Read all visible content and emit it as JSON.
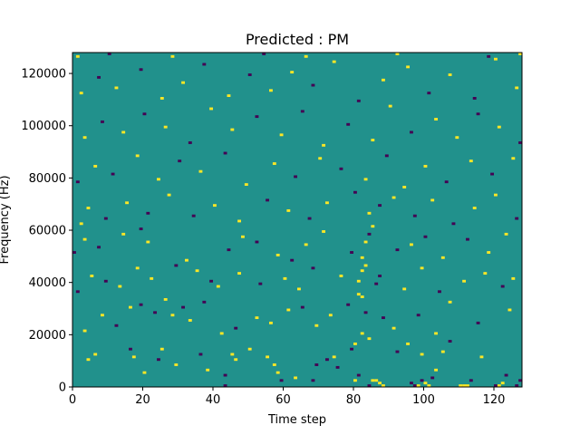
{
  "chart_data": {
    "type": "heatmap",
    "title": "Predicted : PM",
    "xlabel": "Time step",
    "ylabel": "Frequency (Hz)",
    "xlim": [
      0,
      128
    ],
    "ylim": [
      0,
      128000
    ],
    "x_ticks": [
      "0",
      "20",
      "40",
      "60",
      "80",
      "100",
      "120"
    ],
    "y_ticks": [
      "0",
      "20000",
      "40000",
      "60000",
      "80000",
      "100000",
      "120000"
    ],
    "grid": false,
    "legend": "none",
    "value_levels": [
      -1,
      0,
      1
    ],
    "colors": {
      "low": "#440154",
      "mid": "#21918c",
      "high": "#fde725"
    },
    "background_value": 0,
    "cell_height_hz": 1000,
    "cells": [
      [
        43,
        0,
        -1
      ],
      [
        43,
        4,
        -1
      ],
      [
        45,
        12,
        1
      ],
      [
        50,
        14,
        1
      ],
      [
        57,
        8,
        1
      ],
      [
        58,
        5,
        1
      ],
      [
        59,
        2,
        -1
      ],
      [
        63,
        3,
        1
      ],
      [
        68,
        2,
        -1
      ],
      [
        69,
        8,
        -1
      ],
      [
        75,
        7,
        -1
      ],
      [
        80,
        2,
        1
      ],
      [
        81,
        4,
        -1
      ],
      [
        84,
        0,
        -1
      ],
      [
        85,
        2,
        1
      ],
      [
        86,
        2,
        1
      ],
      [
        87,
        1,
        1
      ],
      [
        88,
        0,
        1
      ],
      [
        96,
        1,
        -1
      ],
      [
        97,
        0,
        -1
      ],
      [
        98,
        0,
        1
      ],
      [
        99,
        2,
        -1
      ],
      [
        100,
        1,
        1
      ],
      [
        101,
        0,
        1
      ],
      [
        102,
        3,
        -1
      ],
      [
        103,
        6,
        1
      ],
      [
        110,
        0,
        1
      ],
      [
        111,
        0,
        1
      ],
      [
        112,
        0,
        1
      ],
      [
        113,
        2,
        -1
      ],
      [
        120,
        0,
        -1
      ],
      [
        121,
        0,
        1
      ],
      [
        122,
        1,
        1
      ],
      [
        123,
        4,
        -1
      ],
      [
        126,
        0,
        -1
      ],
      [
        127,
        2,
        -1
      ],
      [
        4,
        10,
        1
      ],
      [
        6,
        12,
        1
      ],
      [
        16,
        14,
        -1
      ],
      [
        17,
        11,
        1
      ],
      [
        20,
        5,
        1
      ],
      [
        24,
        10,
        -1
      ],
      [
        25,
        14,
        1
      ],
      [
        29,
        8,
        1
      ],
      [
        36,
        12,
        -1
      ],
      [
        38,
        6,
        1
      ],
      [
        46,
        10,
        1
      ],
      [
        55,
        11,
        1
      ],
      [
        72,
        10,
        -1
      ],
      [
        74,
        11,
        1
      ],
      [
        79,
        14,
        -1
      ],
      [
        80,
        16,
        1
      ],
      [
        82,
        20,
        1
      ],
      [
        84,
        18,
        1
      ],
      [
        92,
        13,
        -1
      ],
      [
        95,
        16,
        1
      ],
      [
        99,
        12,
        1
      ],
      [
        105,
        13,
        1
      ],
      [
        107,
        17,
        -1
      ],
      [
        116,
        11,
        1
      ],
      [
        3,
        21,
        1
      ],
      [
        8,
        27,
        1
      ],
      [
        12,
        23,
        -1
      ],
      [
        16,
        30,
        1
      ],
      [
        19,
        31,
        -1
      ],
      [
        23,
        28,
        -1
      ],
      [
        26,
        33,
        1
      ],
      [
        28,
        27,
        1
      ],
      [
        31,
        30,
        -1
      ],
      [
        33,
        25,
        1
      ],
      [
        37,
        32,
        -1
      ],
      [
        42,
        20,
        1
      ],
      [
        46,
        22,
        -1
      ],
      [
        52,
        26,
        1
      ],
      [
        56,
        24,
        1
      ],
      [
        61,
        29,
        1
      ],
      [
        65,
        30,
        -1
      ],
      [
        69,
        23,
        1
      ],
      [
        73,
        27,
        1
      ],
      [
        78,
        31,
        -1
      ],
      [
        81,
        35,
        1
      ],
      [
        82,
        34,
        1
      ],
      [
        83,
        28,
        -1
      ],
      [
        88,
        26,
        -1
      ],
      [
        91,
        22,
        1
      ],
      [
        98,
        27,
        -1
      ],
      [
        103,
        20,
        1
      ],
      [
        107,
        32,
        1
      ],
      [
        115,
        24,
        -1
      ],
      [
        124,
        29,
        1
      ],
      [
        1,
        36,
        -1
      ],
      [
        5,
        42,
        1
      ],
      [
        9,
        40,
        -1
      ],
      [
        13,
        38,
        1
      ],
      [
        18,
        45,
        1
      ],
      [
        22,
        41,
        1
      ],
      [
        29,
        46,
        -1
      ],
      [
        35,
        44,
        1
      ],
      [
        39,
        40,
        -1
      ],
      [
        41,
        38,
        1
      ],
      [
        47,
        43,
        1
      ],
      [
        53,
        39,
        -1
      ],
      [
        60,
        41,
        1
      ],
      [
        64,
        37,
        1
      ],
      [
        68,
        45,
        -1
      ],
      [
        76,
        42,
        1
      ],
      [
        81,
        40,
        1
      ],
      [
        82,
        44,
        1
      ],
      [
        83,
        46,
        1
      ],
      [
        86,
        39,
        -1
      ],
      [
        87,
        42,
        -1
      ],
      [
        94,
        37,
        1
      ],
      [
        99,
        45,
        1
      ],
      [
        104,
        36,
        -1
      ],
      [
        111,
        40,
        1
      ],
      [
        117,
        43,
        1
      ],
      [
        122,
        38,
        -1
      ],
      [
        125,
        41,
        1
      ],
      [
        0,
        51,
        -1
      ],
      [
        3,
        56,
        1
      ],
      [
        7,
        53,
        -1
      ],
      [
        14,
        58,
        1
      ],
      [
        19,
        60,
        -1
      ],
      [
        21,
        55,
        1
      ],
      [
        32,
        48,
        1
      ],
      [
        44,
        52,
        -1
      ],
      [
        48,
        57,
        1
      ],
      [
        52,
        55,
        -1
      ],
      [
        58,
        50,
        1
      ],
      [
        62,
        48,
        -1
      ],
      [
        66,
        54,
        1
      ],
      [
        71,
        59,
        1
      ],
      [
        79,
        51,
        -1
      ],
      [
        82,
        49,
        1
      ],
      [
        83,
        55,
        1
      ],
      [
        84,
        58,
        -1
      ],
      [
        85,
        61,
        1
      ],
      [
        92,
        52,
        -1
      ],
      [
        96,
        54,
        1
      ],
      [
        100,
        57,
        -1
      ],
      [
        105,
        49,
        1
      ],
      [
        112,
        56,
        -1
      ],
      [
        118,
        51,
        1
      ],
      [
        123,
        58,
        1
      ],
      [
        2,
        62,
        1
      ],
      [
        4,
        68,
        1
      ],
      [
        9,
        64,
        -1
      ],
      [
        15,
        70,
        1
      ],
      [
        21,
        66,
        -1
      ],
      [
        27,
        73,
        1
      ],
      [
        34,
        65,
        -1
      ],
      [
        40,
        69,
        1
      ],
      [
        47,
        63,
        1
      ],
      [
        55,
        71,
        -1
      ],
      [
        61,
        67,
        1
      ],
      [
        67,
        64,
        -1
      ],
      [
        72,
        70,
        1
      ],
      [
        80,
        74,
        -1
      ],
      [
        84,
        66,
        1
      ],
      [
        87,
        69,
        -1
      ],
      [
        91,
        72,
        1
      ],
      [
        97,
        65,
        -1
      ],
      [
        102,
        71,
        1
      ],
      [
        108,
        62,
        -1
      ],
      [
        114,
        68,
        1
      ],
      [
        120,
        73,
        1
      ],
      [
        126,
        64,
        -1
      ],
      [
        1,
        78,
        -1
      ],
      [
        6,
        84,
        1
      ],
      [
        11,
        81,
        -1
      ],
      [
        18,
        88,
        1
      ],
      [
        24,
        79,
        1
      ],
      [
        30,
        86,
        -1
      ],
      [
        36,
        82,
        1
      ],
      [
        43,
        89,
        -1
      ],
      [
        49,
        77,
        1
      ],
      [
        57,
        85,
        1
      ],
      [
        63,
        80,
        -1
      ],
      [
        70,
        87,
        1
      ],
      [
        76,
        83,
        -1
      ],
      [
        83,
        79,
        1
      ],
      [
        89,
        88,
        -1
      ],
      [
        94,
        76,
        1
      ],
      [
        100,
        84,
        1
      ],
      [
        106,
        78,
        -1
      ],
      [
        113,
        86,
        1
      ],
      [
        119,
        81,
        -1
      ],
      [
        125,
        87,
        1
      ],
      [
        3,
        95,
        1
      ],
      [
        8,
        101,
        -1
      ],
      [
        14,
        97,
        1
      ],
      [
        20,
        104,
        -1
      ],
      [
        26,
        99,
        1
      ],
      [
        33,
        93,
        -1
      ],
      [
        39,
        106,
        1
      ],
      [
        45,
        98,
        1
      ],
      [
        52,
        103,
        -1
      ],
      [
        59,
        96,
        1
      ],
      [
        65,
        105,
        -1
      ],
      [
        71,
        92,
        1
      ],
      [
        78,
        100,
        -1
      ],
      [
        85,
        94,
        1
      ],
      [
        90,
        107,
        1
      ],
      [
        96,
        97,
        -1
      ],
      [
        103,
        102,
        1
      ],
      [
        109,
        95,
        1
      ],
      [
        115,
        104,
        -1
      ],
      [
        121,
        99,
        1
      ],
      [
        127,
        93,
        -1
      ],
      [
        2,
        112,
        1
      ],
      [
        7,
        118,
        -1
      ],
      [
        12,
        114,
        1
      ],
      [
        19,
        121,
        -1
      ],
      [
        25,
        110,
        1
      ],
      [
        31,
        116,
        1
      ],
      [
        37,
        123,
        -1
      ],
      [
        44,
        111,
        1
      ],
      [
        50,
        119,
        -1
      ],
      [
        56,
        113,
        1
      ],
      [
        62,
        120,
        1
      ],
      [
        68,
        115,
        -1
      ],
      [
        74,
        124,
        1
      ],
      [
        81,
        109,
        -1
      ],
      [
        88,
        117,
        1
      ],
      [
        95,
        122,
        1
      ],
      [
        101,
        112,
        -1
      ],
      [
        107,
        119,
        1
      ],
      [
        114,
        110,
        -1
      ],
      [
        120,
        125,
        1
      ],
      [
        126,
        114,
        1
      ],
      [
        1,
        126,
        1
      ],
      [
        10,
        127,
        -1
      ],
      [
        28,
        126,
        1
      ],
      [
        54,
        127,
        -1
      ],
      [
        66,
        126,
        1
      ],
      [
        92,
        127,
        1
      ],
      [
        118,
        126,
        -1
      ],
      [
        127,
        127,
        1
      ]
    ]
  }
}
